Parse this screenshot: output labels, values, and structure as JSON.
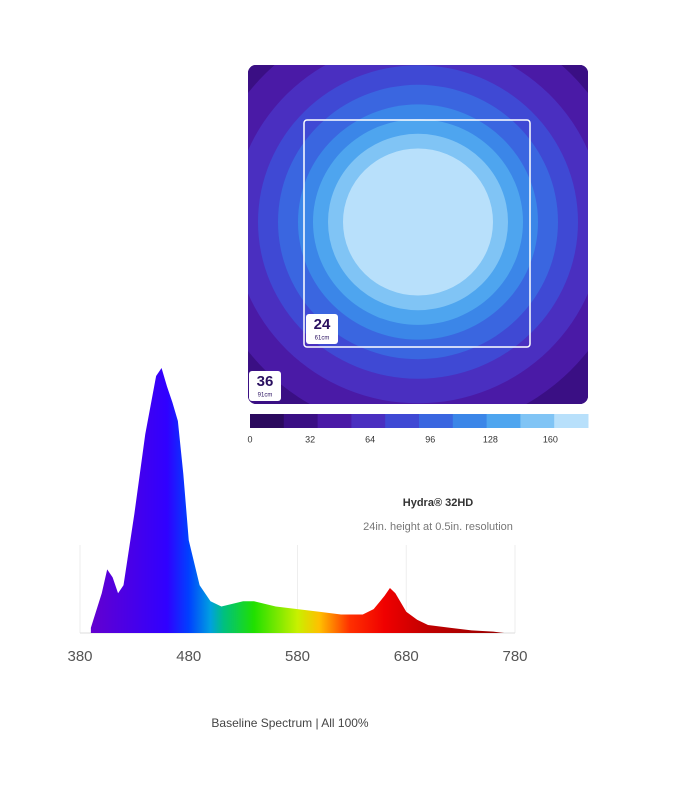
{
  "chart_data": [
    {
      "type": "heatmap",
      "title": "Hydra® 32HD",
      "subtitle": "24in. height at 0.5in. resolution",
      "colors": [
        "#2b0a5e",
        "#3a0f84",
        "#4a1aa6",
        "#4a2fc0",
        "#3f49d4",
        "#3a66e0",
        "#3b86e8",
        "#4ea5ef",
        "#80c4f5",
        "#b8e0fb"
      ],
      "clim": [
        0,
        180
      ],
      "cticks": [
        0,
        32,
        64,
        96,
        128,
        160
      ],
      "annotations": [
        {
          "value": "24",
          "unit": "61cm"
        },
        {
          "value": "36",
          "unit": "91cm"
        }
      ]
    },
    {
      "type": "area",
      "title": "Baseline Spectrum  | All 100%",
      "x": [
        390,
        400,
        405,
        410,
        415,
        420,
        430,
        440,
        450,
        455,
        460,
        465,
        470,
        475,
        480,
        490,
        500,
        510,
        520,
        530,
        540,
        550,
        560,
        580,
        600,
        620,
        640,
        650,
        660,
        665,
        670,
        680,
        690,
        700,
        720,
        740,
        760,
        770
      ],
      "values": [
        2,
        15,
        24,
        21,
        15,
        18,
        45,
        75,
        97,
        100,
        93,
        87,
        80,
        60,
        35,
        18,
        12,
        10,
        11,
        12,
        12,
        11,
        10,
        9,
        8,
        7,
        7,
        9,
        14,
        17,
        15,
        8,
        5,
        3,
        2,
        1,
        0.5,
        0
      ],
      "xlim": [
        380,
        780
      ],
      "ylim": [
        0,
        100
      ],
      "xticks": [
        380,
        480,
        580,
        680,
        780
      ],
      "grid": true
    }
  ]
}
